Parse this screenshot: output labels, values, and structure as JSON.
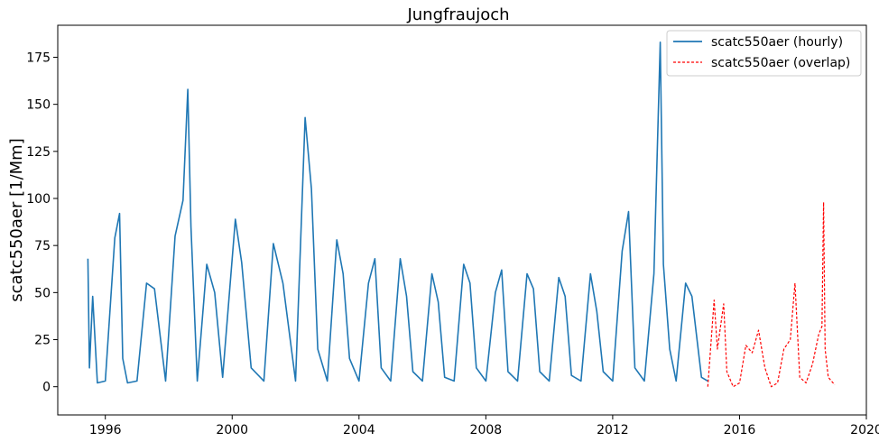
{
  "chart_data": {
    "type": "line",
    "title": "Jungfraujoch",
    "xlabel": "",
    "ylabel": "scatc550aer [1/Mm]",
    "xlim": [
      1994.5,
      2020.0
    ],
    "ylim": [
      -15,
      192
    ],
    "xticks": [
      1996,
      2000,
      2004,
      2008,
      2012,
      2016,
      2020
    ],
    "xtick_labels": [
      "1996",
      "2000",
      "2004",
      "2008",
      "2012",
      "2016",
      "2020"
    ],
    "yticks": [
      0,
      25,
      50,
      75,
      100,
      125,
      150,
      175
    ],
    "ytick_labels": [
      "0",
      "25",
      "50",
      "75",
      "100",
      "125",
      "150",
      "175"
    ],
    "grid": false,
    "legend_position": "top-right",
    "series": [
      {
        "name": "scatc550aer (hourly)",
        "color": "#1f77b4",
        "style": "solid",
        "x": [
          1995.45,
          1995.5,
          1995.6,
          1995.75,
          1996.0,
          1996.3,
          1996.45,
          1996.55,
          1996.7,
          1997.0,
          1997.3,
          1997.55,
          1997.9,
          1998.2,
          1998.45,
          1998.6,
          1998.7,
          1998.9,
          1999.2,
          1999.45,
          1999.7,
          2000.1,
          2000.3,
          2000.6,
          2001.0,
          2001.3,
          2001.6,
          2002.0,
          2002.3,
          2002.5,
          2002.7,
          2003.0,
          2003.3,
          2003.5,
          2003.7,
          2004.0,
          2004.3,
          2004.5,
          2004.7,
          2005.0,
          2005.3,
          2005.5,
          2005.7,
          2006.0,
          2006.3,
          2006.5,
          2006.7,
          2007.0,
          2007.3,
          2007.5,
          2007.7,
          2008.0,
          2008.3,
          2008.5,
          2008.7,
          2009.0,
          2009.3,
          2009.5,
          2009.7,
          2010.0,
          2010.3,
          2010.5,
          2010.7,
          2011.0,
          2011.3,
          2011.5,
          2011.7,
          2012.0,
          2012.3,
          2012.5,
          2012.7,
          2013.0,
          2013.3,
          2013.5,
          2013.6,
          2013.8,
          2014.0,
          2014.3,
          2014.5,
          2014.8,
          2015.0
        ],
        "y": [
          68,
          10,
          48,
          2,
          3,
          79,
          92,
          15,
          2,
          3,
          55,
          52,
          3,
          80,
          99,
          158,
          85,
          3,
          65,
          50,
          5,
          89,
          66,
          10,
          3,
          76,
          55,
          3,
          143,
          105,
          20,
          3,
          78,
          60,
          15,
          3,
          55,
          68,
          10,
          3,
          68,
          48,
          8,
          3,
          60,
          45,
          5,
          3,
          65,
          55,
          10,
          3,
          50,
          62,
          8,
          3,
          60,
          52,
          8,
          3,
          58,
          48,
          6,
          3,
          60,
          40,
          8,
          3,
          72,
          93,
          10,
          3,
          60,
          183,
          65,
          20,
          3,
          55,
          48,
          5,
          3
        ]
      },
      {
        "name": "scatc550aer (overlap)",
        "color": "#ff0000",
        "style": "dashed",
        "x": [
          2015.0,
          2015.2,
          2015.3,
          2015.5,
          2015.6,
          2015.8,
          2016.0,
          2016.2,
          2016.4,
          2016.6,
          2016.8,
          2017.0,
          2017.2,
          2017.4,
          2017.6,
          2017.75,
          2017.9,
          2018.1,
          2018.3,
          2018.5,
          2018.6,
          2018.65,
          2018.7,
          2018.8,
          2019.0
        ],
        "y": [
          0,
          46,
          20,
          44,
          8,
          0,
          2,
          22,
          18,
          30,
          10,
          0,
          2,
          20,
          25,
          55,
          5,
          2,
          12,
          28,
          32,
          98,
          20,
          5,
          1
        ]
      }
    ]
  }
}
